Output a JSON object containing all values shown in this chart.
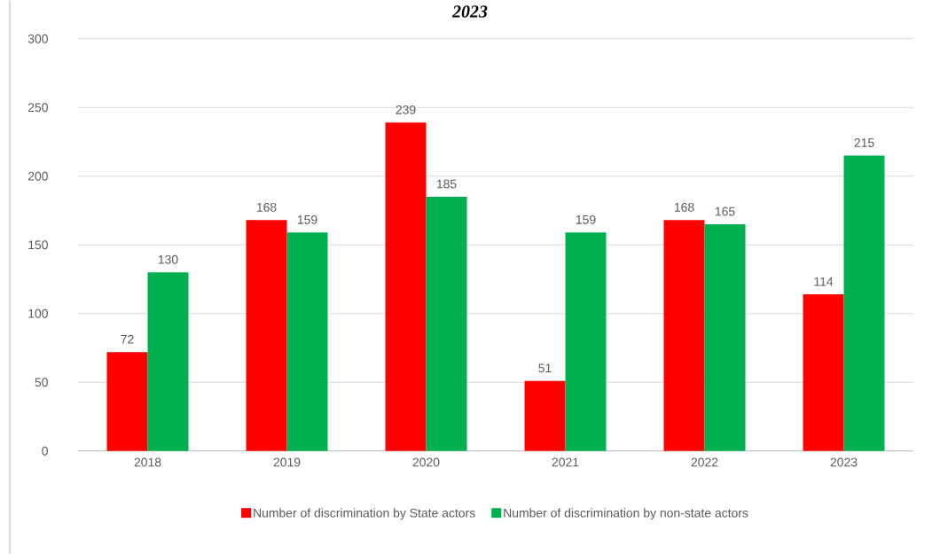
{
  "chart_data": {
    "type": "bar",
    "title": "2023",
    "categories": [
      "2018",
      "2019",
      "2020",
      "2021",
      "2022",
      "2023"
    ],
    "series": [
      {
        "name": "Number of discrimination by State actors",
        "color": "#ff0000",
        "values": [
          72,
          168,
          239,
          51,
          168,
          114
        ]
      },
      {
        "name": "Number of discrimination by non-state actors",
        "color": "#00b050",
        "values": [
          130,
          159,
          185,
          159,
          165,
          215
        ]
      }
    ],
    "ylim": [
      0,
      300
    ],
    "yticks": [
      0,
      50,
      100,
      150,
      200,
      250,
      300
    ],
    "grid": "y",
    "legend": "bottom",
    "data_labels": true
  }
}
